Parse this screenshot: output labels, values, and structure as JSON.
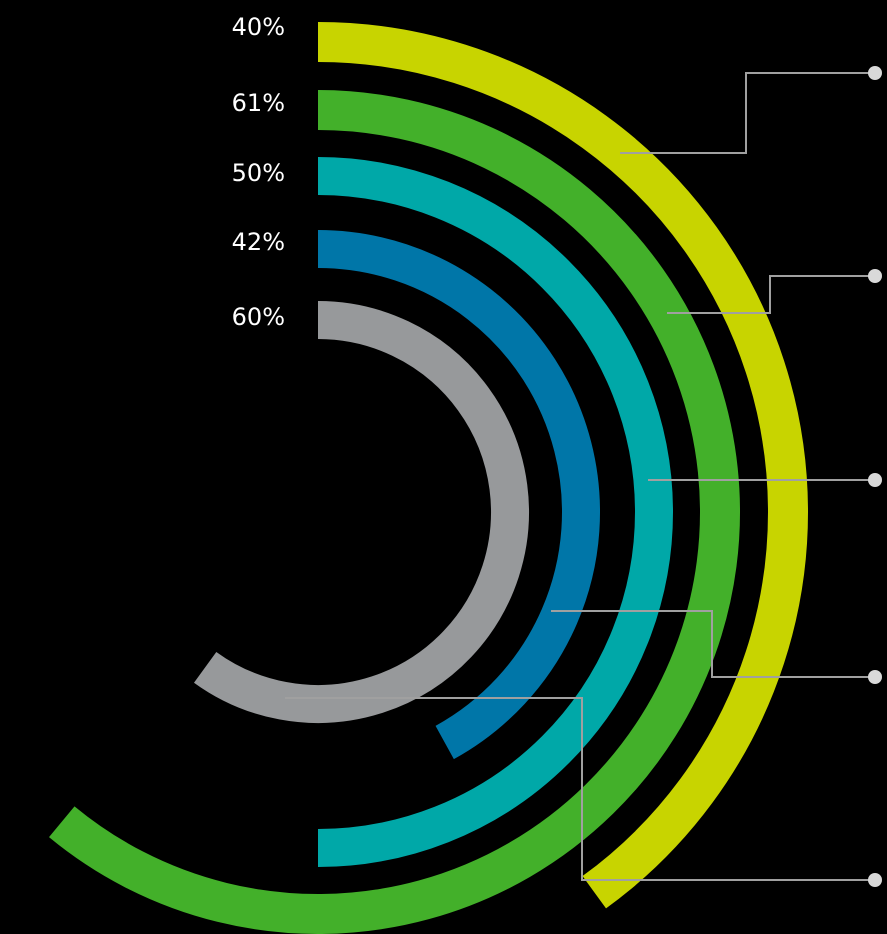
{
  "chart_data": {
    "type": "radial-bar",
    "title": "",
    "series": [
      {
        "label": "40%",
        "value": 40,
        "color": "#c8d400"
      },
      {
        "label": "61%",
        "value": 61,
        "color": "#43b02a"
      },
      {
        "label": "50%",
        "value": 50,
        "color": "#00a8a8"
      },
      {
        "label": "42%",
        "value": 42,
        "color": "#0076a8"
      },
      {
        "label": "60%",
        "value": 60,
        "color": "#97999b"
      }
    ],
    "background": "#000000",
    "leader_color": "#a0a0a0",
    "legend": "none"
  }
}
